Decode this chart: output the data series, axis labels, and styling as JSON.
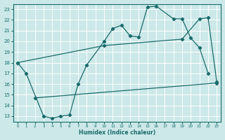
{
  "xlabel": "Humidex (Indice chaleur)",
  "bg_color": "#cce8e8",
  "grid_color": "#ffffff",
  "line_color": "#1a6b6b",
  "xlim": [
    -0.5,
    23.5
  ],
  "ylim": [
    12.5,
    23.5
  ],
  "yticks": [
    13,
    14,
    15,
    16,
    17,
    18,
    19,
    20,
    21,
    22,
    23
  ],
  "xticks": [
    0,
    1,
    2,
    3,
    4,
    5,
    6,
    7,
    8,
    9,
    10,
    11,
    12,
    13,
    14,
    15,
    16,
    17,
    18,
    19,
    20,
    21,
    22,
    23
  ],
  "series": [
    {
      "x": [
        0,
        1,
        3,
        4,
        5,
        6,
        7,
        8,
        10,
        11,
        12,
        13,
        14,
        15,
        16,
        18,
        19,
        20,
        21,
        22
      ],
      "y": [
        18,
        17,
        13,
        12.8,
        13,
        13.1,
        16,
        17.8,
        20,
        21.2,
        21.5,
        20.5,
        20.4,
        23.2,
        23.3,
        22.1,
        22.1,
        20.3,
        19.4,
        17
      ]
    },
    {
      "x": [
        0,
        10,
        19,
        21,
        22,
        23
      ],
      "y": [
        18,
        19.6,
        20.2,
        22.1,
        22.2,
        16.2
      ]
    },
    {
      "x": [
        2,
        23
      ],
      "y": [
        14.7,
        16.1
      ]
    }
  ]
}
